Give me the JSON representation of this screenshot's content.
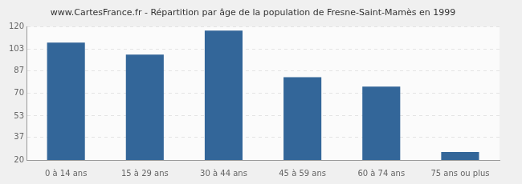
{
  "chart_data": {
    "type": "bar",
    "title": "www.CartesFrance.fr - Répartition par âge de la population de Fresne-Saint-Mamès en 1999",
    "categories": [
      "0 à 14 ans",
      "15 à 29 ans",
      "30 à 44 ans",
      "45 à 59 ans",
      "60 à 74 ans",
      "75 ans ou plus"
    ],
    "values": [
      108,
      99,
      117,
      82,
      75,
      26
    ],
    "color": "#336699",
    "ylim": [
      20,
      120
    ],
    "yticks": [
      20,
      37,
      53,
      70,
      87,
      103,
      120
    ],
    "grid": true
  }
}
